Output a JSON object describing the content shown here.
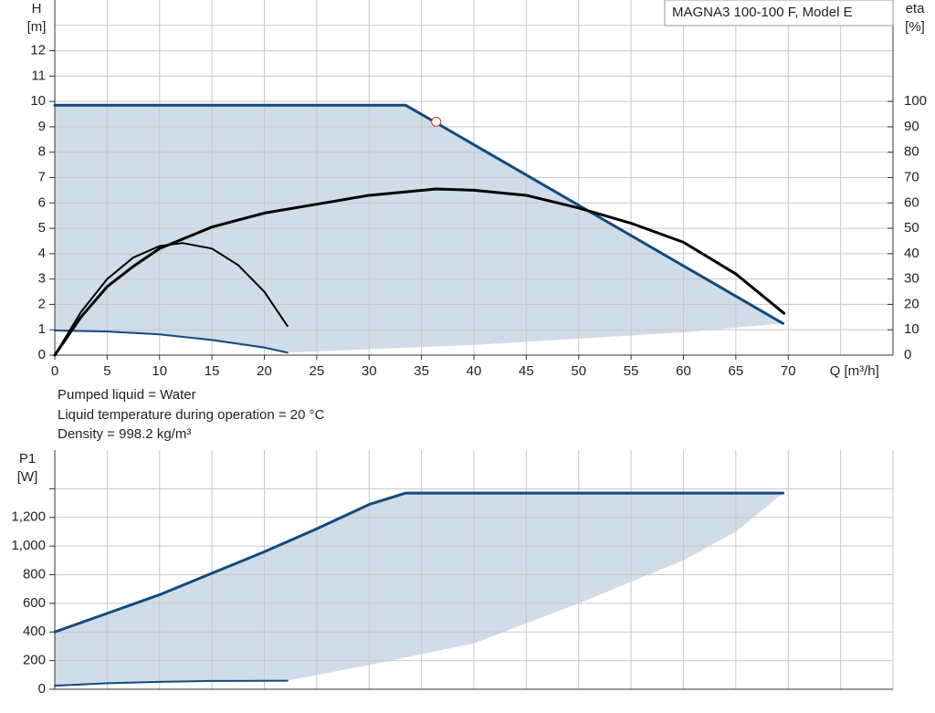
{
  "title": "MAGNA3 100-100 F, Model E",
  "notes": [
    "Pumped liquid = Water",
    "Liquid temperature during operation = 20 °C",
    "Density = 998.2 kg/m³"
  ],
  "chart_data": [
    {
      "type": "line",
      "ylabel": [
        "H",
        "[m]"
      ],
      "y2label": [
        "eta",
        "[%]"
      ],
      "xlabel": "Q [m³/h]",
      "xlim": [
        0,
        80
      ],
      "ylim": [
        0,
        14
      ],
      "y2lim": [
        0,
        140
      ],
      "xticks": [
        0,
        5,
        10,
        15,
        20,
        25,
        30,
        35,
        40,
        45,
        50,
        55,
        60,
        65,
        70
      ],
      "yticks": [
        0,
        1,
        2,
        3,
        4,
        5,
        6,
        7,
        8,
        9,
        10,
        11,
        12
      ],
      "y2ticks": [
        0,
        10,
        20,
        30,
        40,
        50,
        60,
        70,
        80,
        90,
        100
      ],
      "xgrid": [
        0,
        5,
        10,
        15,
        20,
        25,
        30,
        35,
        40,
        45,
        50,
        55,
        60,
        65,
        70,
        75,
        80
      ],
      "ygrid": [
        0,
        1,
        2,
        3,
        4,
        5,
        6,
        7,
        8,
        9,
        10,
        11,
        12,
        13
      ],
      "area": {
        "color": "#d0dce8",
        "x": [
          0,
          33.5,
          69.5,
          60,
          40,
          22.2,
          10,
          0
        ],
        "y": [
          9.85,
          9.85,
          1.25,
          0.9,
          0.4,
          0.1,
          0.85,
          0.97
        ]
      },
      "series": [
        {
          "color": "#134a7c",
          "width": 3,
          "x": [
            0,
            33.5,
            69.5
          ],
          "values": [
            9.85,
            9.85,
            1.25
          ]
        },
        {
          "color": "#134a7c",
          "width": 2,
          "x": [
            0,
            5,
            10,
            15,
            20,
            22.2
          ],
          "values": [
            0.97,
            0.93,
            0.82,
            0.6,
            0.3,
            0.1
          ]
        },
        {
          "color": "#000000",
          "width": 3,
          "axis": "y2",
          "x": [
            0,
            2.5,
            5,
            7.5,
            10,
            15,
            20,
            25,
            30,
            36.4,
            40,
            45,
            50,
            55,
            60,
            65,
            69.6
          ],
          "values": [
            0,
            15,
            27,
            35,
            42,
            50.5,
            56,
            59.5,
            63,
            65.5,
            65,
            63,
            58,
            52,
            44.5,
            32,
            16.5
          ]
        },
        {
          "color": "#000000",
          "width": 2,
          "axis": "y2",
          "x": [
            0,
            2.5,
            5,
            7.5,
            10,
            12.2,
            15,
            17.5,
            20,
            22.2
          ],
          "values": [
            0,
            17,
            30,
            38.5,
            43,
            44.2,
            42,
            35.5,
            25,
            11.5
          ]
        }
      ],
      "marker": {
        "color": "#e03030",
        "x": 36.4,
        "y": 9.2
      }
    },
    {
      "type": "line",
      "ylabel": [
        "P1",
        "[W]"
      ],
      "xlim": [
        0,
        80
      ],
      "ylim": [
        0,
        1670
      ],
      "yticks": [
        0,
        200,
        400,
        600,
        800,
        {
          "value": 1000,
          "label": "1,000"
        },
        {
          "value": 1200,
          "label": "1,200"
        }
      ],
      "xgrid": [
        0,
        5,
        10,
        15,
        20,
        25,
        30,
        35,
        40,
        45,
        50,
        55,
        60,
        65,
        70,
        75,
        80
      ],
      "ygrid": [
        0,
        200,
        400,
        600,
        800,
        1000,
        1200,
        1400
      ],
      "area": {
        "color": "#d0dce8",
        "x": [
          0,
          10,
          20,
          30,
          33.5,
          69.5,
          65,
          60,
          50,
          40,
          30,
          22.2,
          10,
          0
        ],
        "y": [
          400,
          660,
          960,
          1280,
          1370,
          1370,
          1100,
          900,
          600,
          320,
          170,
          60,
          55,
          25
        ]
      },
      "series": [
        {
          "color": "#134a7c",
          "width": 3,
          "x": [
            0,
            10,
            20,
            25,
            30,
            33.5,
            69.5
          ],
          "values": [
            400,
            660,
            960,
            1120,
            1290,
            1370,
            1370
          ]
        },
        {
          "color": "#134a7c",
          "width": 2,
          "x": [
            0,
            5,
            10,
            15,
            22.2
          ],
          "values": [
            25,
            42,
            52,
            58,
            60
          ]
        }
      ]
    }
  ]
}
